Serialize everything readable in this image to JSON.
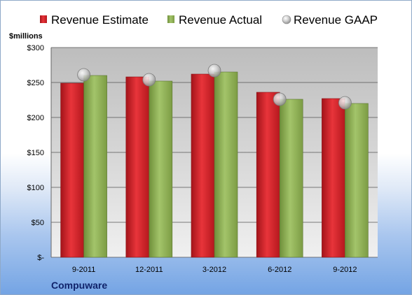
{
  "chart_data": {
    "type": "bar",
    "ylabel": "$millions",
    "ylim": [
      0,
      300
    ],
    "yticks": [
      {
        "value": 0,
        "label": "$-"
      },
      {
        "value": 50,
        "label": "$50"
      },
      {
        "value": 100,
        "label": "$100"
      },
      {
        "value": 150,
        "label": "$150"
      },
      {
        "value": 200,
        "label": "$200"
      },
      {
        "value": 250,
        "label": "$250"
      },
      {
        "value": 300,
        "label": "$300"
      }
    ],
    "categories": [
      "9-2011",
      "12-2011",
      "3-2012",
      "6-2012",
      "9-2012"
    ],
    "series": [
      {
        "name": "Revenue Estimate",
        "kind": "bar",
        "color": "#d41f26",
        "values": [
          249,
          258,
          262,
          236,
          227
        ]
      },
      {
        "name": "Revenue Actual",
        "kind": "bar",
        "color": "#8eb053",
        "values": [
          260,
          252,
          265,
          226,
          220
        ]
      },
      {
        "name": "Revenue GAAP",
        "kind": "marker",
        "color": "#b8b8b8",
        "values": [
          261,
          254,
          267,
          226,
          221
        ]
      }
    ],
    "legend": "top",
    "grid": true
  },
  "footer": {
    "company": "Compuware"
  }
}
